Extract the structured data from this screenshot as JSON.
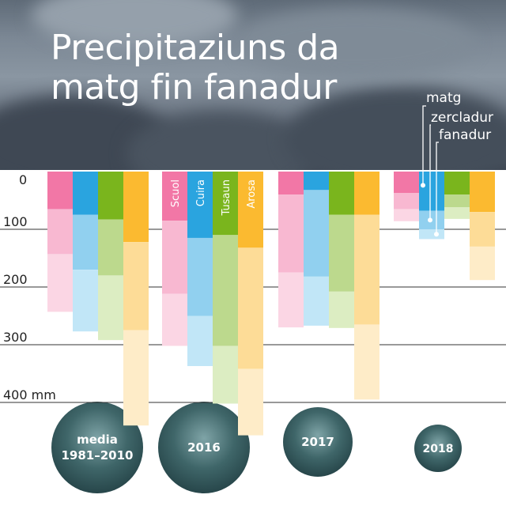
{
  "title_lines": [
    "Precipitaziuns da",
    "matg fin fanadur"
  ],
  "unit": "mm",
  "legend": {
    "matg": "matg",
    "zercladur": "zercladur",
    "fanadur": "fanadur"
  },
  "colors": {
    "Scuol": [
      "#f277a6",
      "#f8b8d1",
      "#fbd6e4"
    ],
    "Cuira": [
      "#2aa4df",
      "#91d0ef",
      "#c1e6f7"
    ],
    "Tusaun": [
      "#7ab51d",
      "#bcd98d",
      "#dcedc2"
    ],
    "Arosa": [
      "#fbba30",
      "#fddc97",
      "#feecc8"
    ]
  },
  "chart_data": {
    "type": "bar",
    "stacked": true,
    "inverted_y": true,
    "ylabel": "mm",
    "ylim": [
      0,
      400
    ],
    "yticks": [
      0,
      100,
      200,
      300,
      400
    ],
    "grid": true,
    "stations": [
      "Scuol",
      "Cuira",
      "Tusaun",
      "Arosa"
    ],
    "months": [
      "matg",
      "zercladur",
      "fanadur"
    ],
    "groups": [
      {
        "label": "media 1981–2010",
        "stacks": [
          {
            "station": "Scuol",
            "values": [
              65,
              78,
              100
            ]
          },
          {
            "station": "Cuira",
            "values": [
              75,
              95,
              107
            ]
          },
          {
            "station": "Tusaun",
            "values": [
              83,
              97,
              112
            ]
          },
          {
            "station": "Arosa",
            "values": [
              122,
              153,
              165
            ]
          }
        ]
      },
      {
        "label": "2016",
        "stacks": [
          {
            "station": "Scuol",
            "values": [
              85,
              127,
              90
            ]
          },
          {
            "station": "Cuira",
            "values": [
              115,
              135,
              87
            ]
          },
          {
            "station": "Tusaun",
            "values": [
              110,
              192,
              100
            ]
          },
          {
            "station": "Arosa",
            "values": [
              132,
              210,
              115
            ]
          }
        ]
      },
      {
        "label": "2017",
        "stacks": [
          {
            "station": "Scuol",
            "values": [
              40,
              135,
              95
            ]
          },
          {
            "station": "Cuira",
            "values": [
              32,
              150,
              85
            ]
          },
          {
            "station": "Tusaun",
            "values": [
              75,
              133,
              63
            ]
          },
          {
            "station": "Arosa",
            "values": [
              75,
              190,
              130
            ]
          }
        ]
      },
      {
        "label": "2018",
        "stacks": [
          {
            "station": "Scuol",
            "values": [
              37,
              28,
              21
            ]
          },
          {
            "station": "Cuira",
            "values": [
              68,
              32,
              17
            ]
          },
          {
            "station": "Tusaun",
            "values": [
              40,
              22,
              20
            ]
          },
          {
            "station": "Arosa",
            "values": [
              70,
              60,
              58
            ]
          }
        ]
      }
    ]
  }
}
